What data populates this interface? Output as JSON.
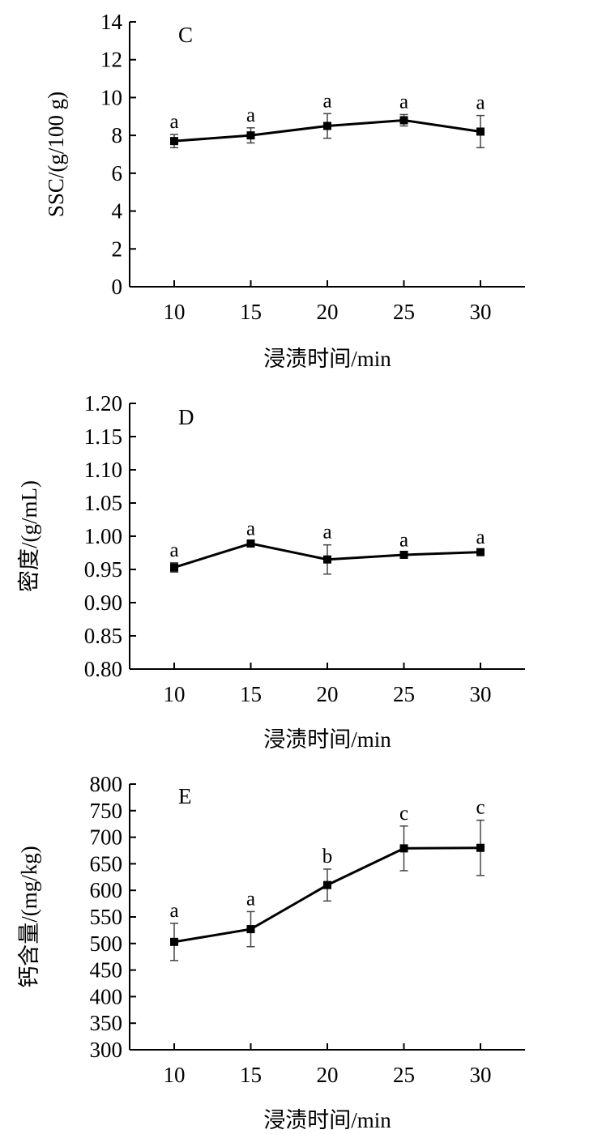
{
  "chart_data": [
    {
      "type": "line",
      "panel_label": "C",
      "xlabel": "浸渍时间/min",
      "ylabel": "SSC/(g/100 g)",
      "x": [
        10,
        15,
        20,
        25,
        30
      ],
      "x_ticks": [
        "10",
        "15",
        "20",
        "25",
        "30"
      ],
      "ylim": [
        0,
        14
      ],
      "y_ticks": [
        "0",
        "2",
        "4",
        "6",
        "8",
        "10",
        "12",
        "14"
      ],
      "series": [
        {
          "values": [
            7.7,
            8.0,
            8.5,
            8.8,
            8.2
          ],
          "errors": [
            0.35,
            0.4,
            0.65,
            0.3,
            0.85
          ],
          "labels": [
            "a",
            "a",
            "a",
            "a",
            "a"
          ]
        }
      ],
      "grid": false
    },
    {
      "type": "line",
      "panel_label": "D",
      "xlabel": "浸渍时间/min",
      "ylabel": "密度/(g/mL)",
      "x": [
        10,
        15,
        20,
        25,
        30
      ],
      "x_ticks": [
        "10",
        "15",
        "20",
        "25",
        "30"
      ],
      "ylim": [
        0.8,
        1.2
      ],
      "y_ticks": [
        "0.80",
        "0.85",
        "0.90",
        "0.95",
        "1.00",
        "1.05",
        "1.10",
        "1.15",
        "1.20"
      ],
      "series": [
        {
          "values": [
            0.953,
            0.989,
            0.965,
            0.972,
            0.976
          ],
          "errors": [
            0.007,
            0.003,
            0.022,
            0.003,
            0.003
          ],
          "labels": [
            "a",
            "a",
            "a",
            "a",
            "a"
          ]
        }
      ],
      "grid": false
    },
    {
      "type": "line",
      "panel_label": "E",
      "xlabel": "浸渍时间/min",
      "ylabel": "钙含量/(mg/kg)",
      "x": [
        10,
        15,
        20,
        25,
        30
      ],
      "x_ticks": [
        "10",
        "15",
        "20",
        "25",
        "30"
      ],
      "ylim": [
        300,
        800
      ],
      "y_ticks": [
        "300",
        "350",
        "400",
        "450",
        "500",
        "550",
        "600",
        "650",
        "700",
        "750",
        "800"
      ],
      "series": [
        {
          "values": [
            503,
            527,
            610,
            679,
            680
          ],
          "errors": [
            35,
            33,
            30,
            42,
            52
          ],
          "labels": [
            "a",
            "a",
            "b",
            "c",
            "c"
          ]
        }
      ],
      "grid": false
    }
  ]
}
